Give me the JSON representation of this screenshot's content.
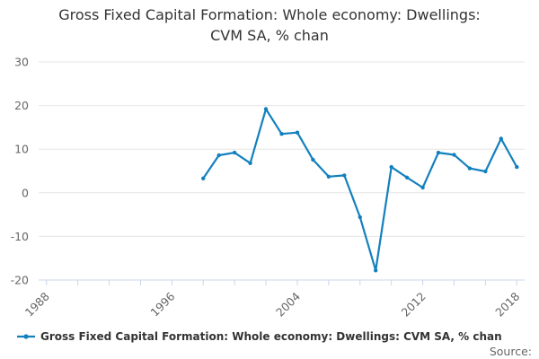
{
  "title": {
    "lines": [
      "Gross Fixed Capital Formation: Whole economy: Dwellings:",
      "CVM SA, % chan"
    ],
    "full_text": "Gross Fixed Capital Formation: Whole economy: Dwellings: CVM SA, % chan"
  },
  "chart_data": {
    "type": "line",
    "title": "Gross Fixed Capital Formation: Whole economy: Dwellings: CVM SA, % chan",
    "xlabel": "",
    "ylabel": "",
    "x": [
      1998,
      1999,
      2000,
      2001,
      2002,
      2003,
      2004,
      2005,
      2006,
      2007,
      2008,
      2009,
      2010,
      2011,
      2012,
      2013,
      2014,
      2015,
      2016,
      2017,
      2018
    ],
    "series": [
      {
        "name": "Gross Fixed Capital Formation: Whole economy: Dwellings: CVM SA, % chan",
        "values": [
          3.3,
          8.6,
          9.2,
          6.8,
          19.2,
          13.5,
          13.8,
          7.6,
          3.7,
          4.0,
          -5.6,
          -17.8,
          5.9,
          3.5,
          1.2,
          9.2,
          8.7,
          5.6,
          4.9,
          12.4,
          5.9
        ]
      }
    ],
    "ylim": [
      -20,
      30
    ],
    "xlim": [
      1987.5,
      2018.5
    ],
    "y_ticks": [
      30,
      20,
      10,
      0,
      -10,
      -20
    ],
    "x_tick_years": [
      1988,
      1990,
      1992,
      1994,
      1996,
      1998,
      2000,
      2002,
      2004,
      2006,
      2008,
      2010,
      2012,
      2014,
      2016,
      2018
    ],
    "x_tick_labels": [
      1988,
      1996,
      2004,
      2012,
      2018
    ],
    "grid": "horizontal-on",
    "legend_position": "bottom-left",
    "marker": "circle",
    "colors": {
      "series": "#1380be",
      "gridline": "#e6e6e6",
      "axis": "#ccd6eb",
      "axis_label": "#666666",
      "text": "#333333",
      "source": "#666666"
    }
  },
  "legend": {
    "label": "Gross Fixed Capital Formation: Whole economy: Dwellings: CVM SA, % chan"
  },
  "footer": {
    "source_label": "Source:"
  }
}
